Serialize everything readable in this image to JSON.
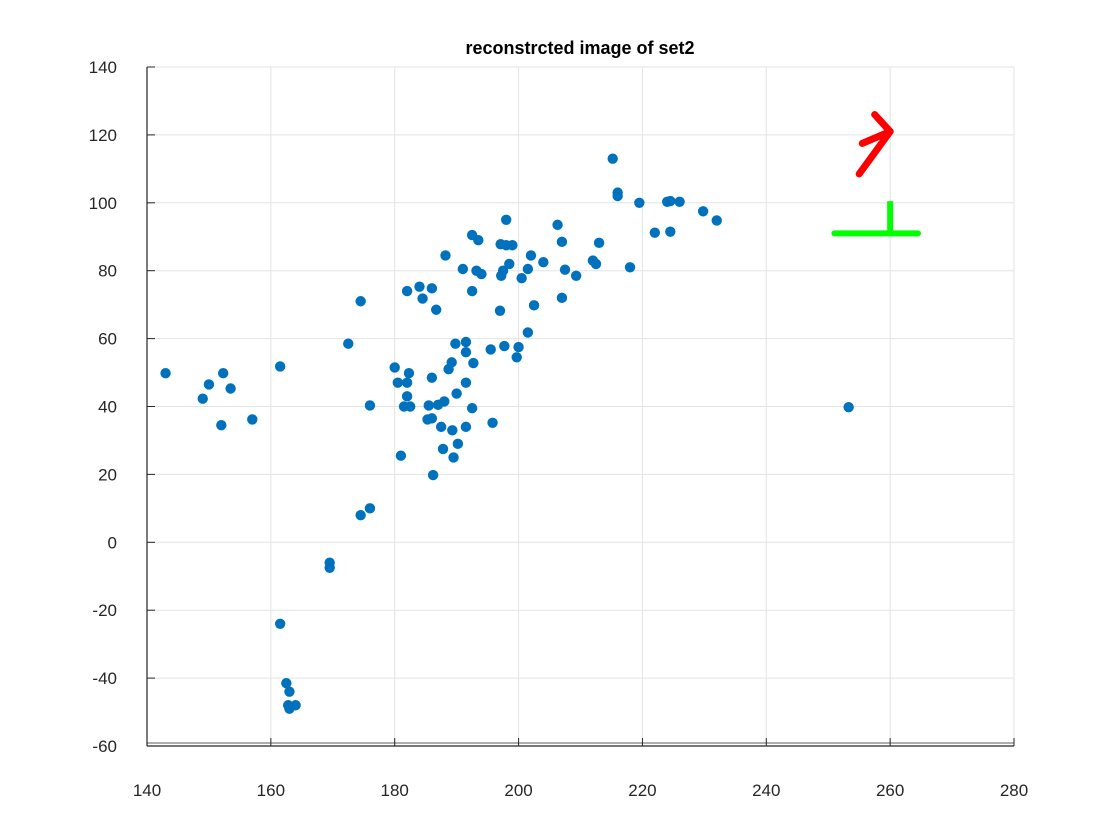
{
  "chart_data": {
    "type": "scatter",
    "title": "reconstrcted image of set2",
    "xlabel": "",
    "ylabel": "",
    "xlim": [
      140,
      280
    ],
    "ylim": [
      -60,
      140
    ],
    "xticks": [
      140,
      160,
      180,
      200,
      220,
      240,
      260,
      280
    ],
    "yticks": [
      -60,
      -40,
      -20,
      0,
      20,
      40,
      60,
      80,
      100,
      120,
      140
    ],
    "grid": true,
    "legend": "none",
    "colors": {
      "points": "#0072BD",
      "x_axis_marker": "#FF0000",
      "y_axis_marker": "#00FF00"
    },
    "axis_markers": [
      {
        "icon": "red-arrow-icon",
        "points": [
          [
            255.5,
            117.5
          ],
          [
            260,
            121
          ],
          [
            257.5,
            126
          ]
        ],
        "shaft_to": [
          260,
          121
        ]
      },
      {
        "icon": "green-tee-icon",
        "bar": [
          [
            251,
            91
          ],
          [
            264.5,
            91
          ]
        ],
        "stem": [
          [
            260,
            91
          ],
          [
            260,
            100.5
          ]
        ]
      }
    ],
    "series": [
      {
        "points": [
          [
            143,
            49.8
          ],
          [
            149,
            42.3
          ],
          [
            150,
            46.5
          ],
          [
            152,
            34.5
          ],
          [
            152.3,
            49.8
          ],
          [
            153.5,
            45.3
          ],
          [
            157,
            36.2
          ],
          [
            161.5,
            51.8
          ],
          [
            161.5,
            -24
          ],
          [
            162.5,
            -41.5
          ],
          [
            163,
            -44
          ],
          [
            162.8,
            -48
          ],
          [
            163,
            -49
          ],
          [
            164,
            -48
          ],
          [
            169.5,
            -6
          ],
          [
            169.5,
            -7.5
          ],
          [
            172.5,
            58.5
          ],
          [
            174.5,
            71
          ],
          [
            174.5,
            8
          ],
          [
            176,
            40.3
          ],
          [
            176,
            10
          ],
          [
            180,
            51.5
          ],
          [
            180.5,
            47
          ],
          [
            181,
            25.5
          ],
          [
            181.5,
            40
          ],
          [
            182,
            47
          ],
          [
            182,
            43
          ],
          [
            182.3,
            49.8
          ],
          [
            182,
            74
          ],
          [
            182.5,
            40
          ],
          [
            184,
            75.3
          ],
          [
            184.5,
            71.8
          ],
          [
            185.3,
            36.2
          ],
          [
            185.5,
            40.3
          ],
          [
            186,
            36.5
          ],
          [
            186,
            74.8
          ],
          [
            186,
            48.5
          ],
          [
            186.2,
            19.8
          ],
          [
            186.7,
            68.5
          ],
          [
            187,
            40.5
          ],
          [
            187.5,
            34
          ],
          [
            187.8,
            27.5
          ],
          [
            188,
            41.5
          ],
          [
            188.2,
            84.5
          ],
          [
            188.7,
            51
          ],
          [
            189.2,
            53
          ],
          [
            189.3,
            33
          ],
          [
            189.5,
            25
          ],
          [
            189.8,
            58.5
          ],
          [
            190,
            43.8
          ],
          [
            190.2,
            29
          ],
          [
            191,
            80.5
          ],
          [
            191.5,
            59
          ],
          [
            191.5,
            56
          ],
          [
            191.5,
            34
          ],
          [
            191.5,
            47
          ],
          [
            192.5,
            39.5
          ],
          [
            192.5,
            74
          ],
          [
            192.5,
            90.5
          ],
          [
            192.7,
            52.8
          ],
          [
            193.2,
            80
          ],
          [
            193.5,
            89
          ],
          [
            194,
            79
          ],
          [
            195.5,
            56.8
          ],
          [
            195.8,
            35.2
          ],
          [
            197,
            68.2
          ],
          [
            197.1,
            87.8
          ],
          [
            197.2,
            78.5
          ],
          [
            197.5,
            80
          ],
          [
            197.7,
            57.8
          ],
          [
            198,
            95
          ],
          [
            198,
            87.5
          ],
          [
            198.5,
            82
          ],
          [
            199,
            87.5
          ],
          [
            199.7,
            54.5
          ],
          [
            200,
            57.5
          ],
          [
            200.5,
            77.8
          ],
          [
            201.5,
            80.5
          ],
          [
            201.5,
            61.8
          ],
          [
            202,
            84.5
          ],
          [
            202.5,
            69.8
          ],
          [
            204,
            82.5
          ],
          [
            206.3,
            93.5
          ],
          [
            207,
            88.5
          ],
          [
            207,
            72
          ],
          [
            207.5,
            80.3
          ],
          [
            209.3,
            78.5
          ],
          [
            212,
            83
          ],
          [
            212.5,
            82
          ],
          [
            213,
            88.2
          ],
          [
            215.2,
            113
          ],
          [
            216,
            103
          ],
          [
            216,
            102
          ],
          [
            218,
            81
          ],
          [
            219.5,
            100
          ],
          [
            222,
            91.2
          ],
          [
            224,
            100.3
          ],
          [
            224.5,
            100.5
          ],
          [
            224.5,
            91.5
          ],
          [
            226,
            100.3
          ],
          [
            229.8,
            97.5
          ],
          [
            232,
            94.8
          ],
          [
            253.3,
            39.8
          ]
        ]
      }
    ]
  }
}
